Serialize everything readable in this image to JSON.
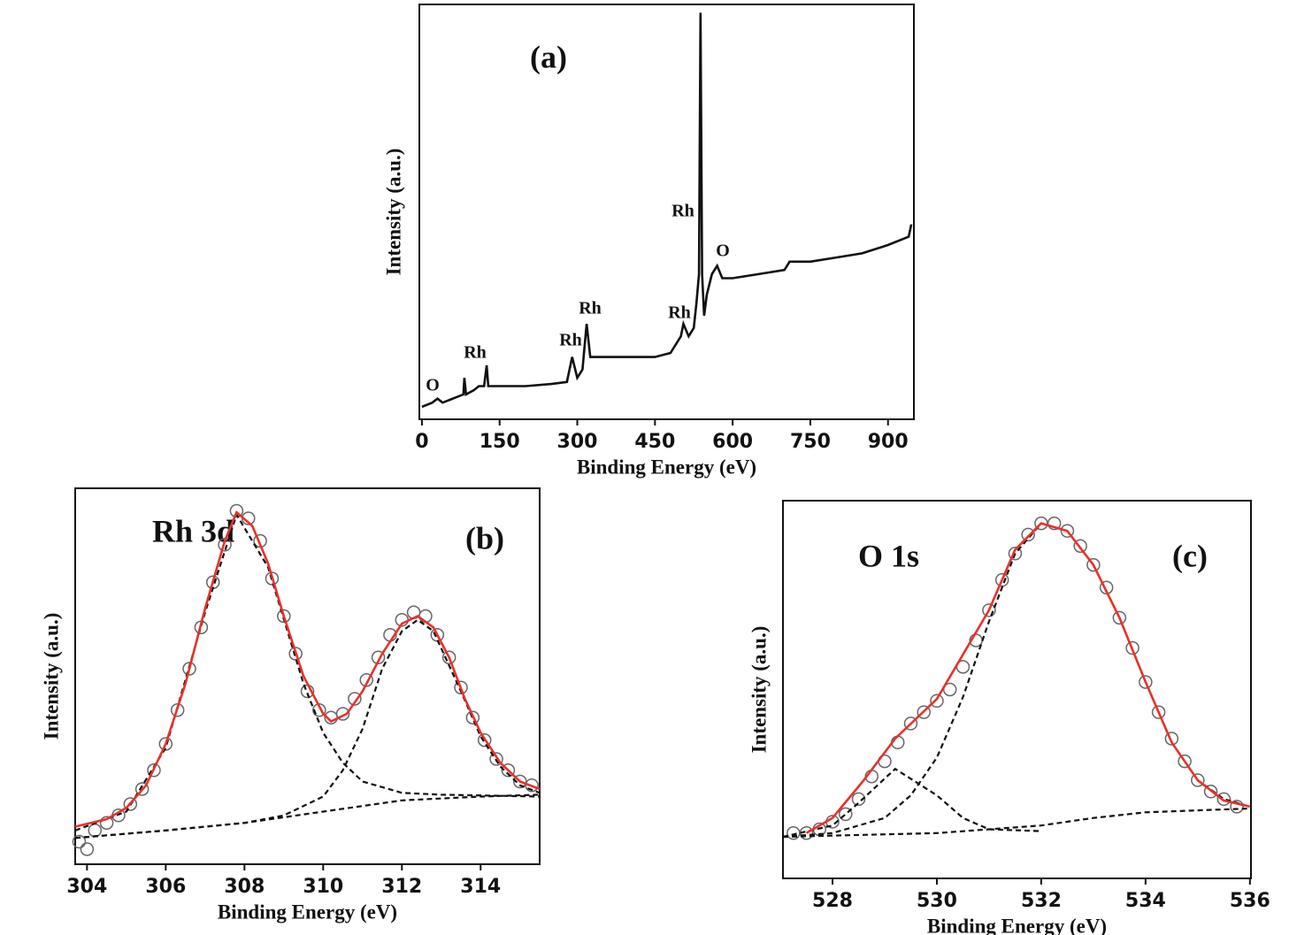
{
  "chart_data": [
    {
      "type": "line",
      "title": "(a)",
      "x_label": "Binding Energy (eV)",
      "y_label": "Intensity (a.u.)",
      "xlim": [
        -5,
        950
      ],
      "xticks": [
        0,
        150,
        300,
        450,
        600,
        750,
        900
      ],
      "ylim": [
        0,
        100
      ],
      "yticks": [],
      "annotations": [
        "O",
        "Rh",
        "Rh",
        "Rh",
        "Rh",
        "Rh",
        "O"
      ],
      "series": [
        {
          "color": "#111111",
          "style": "line",
          "x": [
            0,
            20,
            30,
            40,
            60,
            80,
            82,
            85,
            100,
            110,
            120,
            125,
            128,
            150,
            200,
            250,
            280,
            290,
            300,
            310,
            318,
            325,
            340,
            400,
            450,
            480,
            500,
            505,
            515,
            525,
            530,
            535,
            538,
            541,
            545,
            550,
            560,
            570,
            580,
            600,
            650,
            700,
            710,
            750,
            800,
            850,
            900,
            940,
            945
          ],
          "values": [
            3,
            4,
            5,
            4,
            5,
            6,
            10,
            6,
            7,
            8,
            8,
            13,
            8,
            8,
            8,
            8.5,
            9,
            15,
            10,
            12,
            23,
            15,
            15,
            15,
            15,
            16,
            20,
            23,
            20,
            22,
            28,
            35,
            98,
            35,
            25,
            30,
            35,
            37,
            34,
            34,
            35,
            36,
            38,
            38,
            39,
            40,
            42,
            44,
            47
          ]
        }
      ]
    },
    {
      "type": "scatter",
      "title": "(b)",
      "x_label": "Binding Energy (eV)",
      "y_label": "Intensity (a.u.)",
      "xlim": [
        303.7,
        315.5
      ],
      "xticks": [
        304,
        306,
        308,
        310,
        312,
        314
      ],
      "ylim": [
        0,
        100
      ],
      "yticks": [],
      "annotations": [
        "Rh 3d"
      ],
      "series": [
        {
          "color": "#666666",
          "style": "markers",
          "x": [
            303.8,
            304.0,
            304.2,
            304.5,
            304.8,
            305.1,
            305.4,
            305.7,
            306.0,
            306.3,
            306.6,
            306.9,
            307.2,
            307.5,
            307.8,
            308.1,
            308.4,
            308.7,
            309.0,
            309.3,
            309.6,
            309.9,
            310.2,
            310.5,
            310.8,
            311.1,
            311.4,
            311.7,
            312.0,
            312.3,
            312.6,
            312.9,
            313.2,
            313.5,
            313.8,
            314.1,
            314.4,
            314.7,
            315.0,
            315.3
          ],
          "values": [
            6,
            4,
            9,
            11,
            13,
            16,
            20,
            25,
            32,
            41,
            52,
            63,
            75,
            85,
            94,
            92,
            86,
            76,
            66,
            56,
            46,
            41,
            39,
            40,
            44,
            49,
            55,
            61,
            65,
            67,
            66,
            61,
            55,
            47,
            39,
            33,
            28,
            25,
            22,
            21
          ]
        },
        {
          "color": "#111111",
          "style": "dashed",
          "x": [
            303.7,
            306,
            308,
            310,
            312,
            314,
            315.5
          ],
          "values": [
            7,
            9,
            11,
            14,
            17,
            18,
            18.5
          ]
        },
        {
          "color": "#111111",
          "style": "dashed",
          "x": [
            303.7,
            305,
            306,
            307,
            307.8,
            308.6,
            309.5,
            310,
            310.5,
            311,
            312,
            313,
            315.5
          ],
          "values": [
            9,
            14,
            31,
            67,
            93,
            79,
            48,
            35,
            27,
            22,
            19,
            18.5,
            18
          ]
        },
        {
          "color": "#111111",
          "style": "dashed",
          "x": [
            303.7,
            306,
            308,
            309,
            310,
            310.5,
            311,
            311.5,
            312,
            312.4,
            312.8,
            313.5,
            314,
            314.5,
            315,
            315.5
          ],
          "values": [
            7,
            9,
            11,
            13,
            18,
            25,
            36,
            52,
            62,
            65,
            62,
            46,
            34,
            26,
            21,
            19
          ]
        },
        {
          "color": "#e8312a",
          "style": "line",
          "x": [
            303.7,
            304.5,
            305,
            305.5,
            306,
            306.5,
            307,
            307.5,
            307.8,
            308.2,
            308.6,
            309,
            309.5,
            310,
            310.2,
            310.6,
            311,
            311.5,
            312,
            312.4,
            312.8,
            313.2,
            313.6,
            314,
            314.5,
            315,
            315.5
          ],
          "values": [
            10,
            12,
            15,
            21,
            32,
            48,
            68,
            86,
            93.6,
            90,
            80,
            66,
            50,
            40,
            38,
            40,
            46,
            56,
            64,
            66,
            63,
            55,
            44,
            35,
            27,
            22,
            20
          ]
        }
      ]
    },
    {
      "type": "scatter",
      "title": "(c)",
      "x_label": "Binding Energy (eV)",
      "y_label": "Intensity (a.u.)",
      "xlim": [
        527.05,
        536.02
      ],
      "xticks": [
        528,
        530,
        532,
        534,
        536
      ],
      "ylim": [
        0,
        100
      ],
      "yticks": [],
      "annotations": [
        "O 1s"
      ],
      "series": [
        {
          "color": "#666666",
          "style": "markers",
          "x": [
            527.25,
            527.5,
            527.75,
            528,
            528.25,
            528.5,
            528.75,
            529,
            529.25,
            529.5,
            529.75,
            530,
            530.25,
            530.5,
            530.75,
            531,
            531.25,
            531.5,
            531.75,
            532,
            532.25,
            532.5,
            532.75,
            533,
            533.25,
            533.5,
            533.75,
            534,
            534.25,
            534.5,
            534.75,
            535,
            535.25,
            535.5,
            535.75
          ],
          "values": [
            12,
            12,
            13,
            15,
            17,
            21,
            27,
            31,
            36,
            41,
            44,
            47,
            50,
            56,
            63,
            71,
            79,
            86,
            91,
            94,
            94,
            92,
            88,
            83,
            77,
            69,
            61,
            52,
            44,
            37,
            31,
            26,
            23,
            21,
            19
          ]
        },
        {
          "color": "#111111",
          "style": "dashed",
          "x": [
            527.05,
            530,
            532,
            533,
            534,
            535,
            536
          ],
          "values": [
            11,
            12,
            14,
            16,
            17.5,
            18,
            18.5
          ]
        },
        {
          "color": "#111111",
          "style": "dashed",
          "x": [
            527.05,
            528,
            528.5,
            529.2,
            530,
            530.5,
            531,
            532
          ],
          "values": [
            11,
            14,
            20,
            29,
            22,
            16,
            13,
            12.5
          ]
        },
        {
          "color": "#111111",
          "style": "dashed",
          "x": [
            527.05,
            528,
            529,
            529.5,
            530,
            530.5,
            531,
            531.5,
            532,
            532.5,
            533,
            533.5,
            534,
            534.5,
            535,
            535.5,
            536
          ],
          "values": [
            11,
            12,
            16,
            22,
            32,
            48,
            68,
            86,
            94,
            92,
            83,
            69,
            52,
            36,
            26,
            21,
            19
          ]
        },
        {
          "color": "#e8312a",
          "style": "line",
          "x": [
            527.5,
            528,
            528.6,
            529.2,
            530,
            531,
            531.5,
            532,
            532.5,
            533,
            533.5,
            534,
            534.5,
            535,
            535.5,
            536
          ],
          "values": [
            12,
            16,
            26,
            37,
            47.5,
            71,
            87,
            94,
            92,
            83,
            69,
            52,
            36,
            26,
            20.6,
            19
          ]
        }
      ]
    }
  ]
}
